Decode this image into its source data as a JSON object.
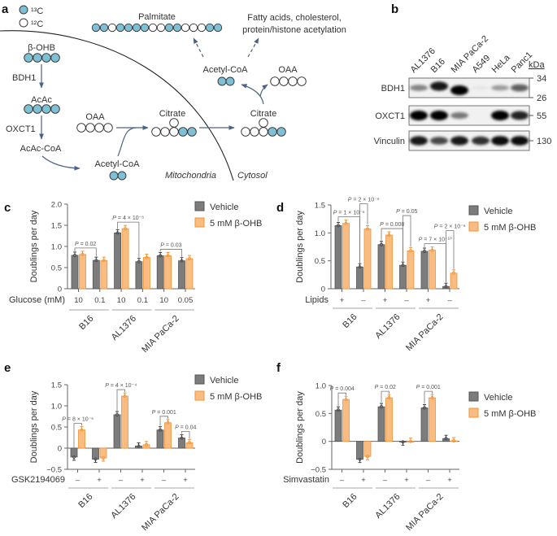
{
  "colors": {
    "carbon13": "#7ec0d6",
    "carbon12": "#ffffff",
    "vehicle": "#7c7c7c",
    "bohb": "#f9bd84",
    "bohb_stroke": "#f29333",
    "arrow": "#4b6385"
  },
  "panel_a": {
    "label": "a",
    "legend": {
      "c13": "¹³C",
      "c12": "¹²C"
    },
    "palmitate": "Palmitate",
    "fates": [
      "Fatty acids, cholesterol,",
      "protein/histone acetylation"
    ],
    "bohb": "β-OHB",
    "bdh1": "BDH1",
    "acac": "AcAc",
    "oxct1": "OXCT1",
    "acac_coa": "AcAc-CoA",
    "oaa_mito": "OAA",
    "citrate_mito": "Citrate",
    "citrate_cyto": "Citrate",
    "acetyl_coa_cyto": "Acetyl-CoA",
    "oaa_cyto": "OAA",
    "acetyl_coa_mito": "Acetyl-CoA",
    "mitochondria": "Mitochondria",
    "cytosol": "Cytosol",
    "labeling": {
      "palmitate": [
        1,
        1,
        0,
        1,
        1,
        1,
        1,
        0,
        0,
        1,
        1,
        0,
        0,
        0,
        1,
        1
      ],
      "bohb": [
        1,
        1,
        1,
        1
      ],
      "acac": [
        1,
        1,
        1,
        1
      ],
      "oaa_mito": [
        0,
        0,
        0,
        0
      ],
      "citrate_row": [
        0,
        0,
        0,
        1,
        1
      ],
      "citrate_top": [
        0
      ],
      "acetyl_coa_cyto": [
        1,
        1
      ],
      "oaa_cyto": [
        0,
        0,
        0,
        0
      ],
      "acetyl_coa_mito": [
        1,
        1
      ]
    }
  },
  "panel_b": {
    "label": "b",
    "lanes": [
      "AL1376",
      "B16",
      "MIA PaCa-2",
      "A549",
      "HeLa",
      "Panc1"
    ],
    "kda_label": "kDa",
    "blots": [
      {
        "name": "BDH1",
        "markers": [
          "34",
          "26"
        ],
        "intensity": [
          0.45,
          0.9,
          1.0,
          0.05,
          0.35,
          0.6
        ]
      },
      {
        "name": "OXCT1",
        "markers": [
          "55"
        ],
        "intensity": [
          1.0,
          1.0,
          0.5,
          0.0,
          1.0,
          0.85
        ]
      },
      {
        "name": "Vinculin",
        "markers": [
          "130"
        ],
        "intensity": [
          0.9,
          0.7,
          0.9,
          0.8,
          0.95,
          0.95
        ]
      }
    ]
  },
  "chart_data": [
    {
      "panel": "c",
      "type": "bar",
      "ylabel": "Doublings per day",
      "ylim": [
        0,
        2
      ],
      "yticks": [
        "0",
        "0.5",
        "1.0",
        "1.5",
        "2.0"
      ],
      "ytick_values": [
        0,
        0.5,
        1.0,
        1.5,
        2.0
      ],
      "condition_label": "Glucose (mM)",
      "groups": [
        "B16",
        "AL1376",
        "MIA PaCa-2"
      ],
      "conditions": [
        "10",
        "0.1",
        "10",
        "0.1",
        "10",
        "0.05"
      ],
      "legend": [
        "Vehicle",
        "5 mM β-OHB"
      ],
      "series": [
        {
          "name": "Vehicle",
          "values": [
            0.79,
            0.67,
            1.32,
            0.64,
            0.78,
            0.66
          ]
        },
        {
          "name": "5 mM β-OHB",
          "values": [
            0.81,
            0.67,
            1.42,
            0.74,
            0.78,
            0.71
          ]
        }
      ],
      "annotations": [
        {
          "text": "P = 0.02",
          "from": [
            0,
            0
          ],
          "to": [
            1,
            0
          ]
        },
        {
          "text": "P = 4 × 10⁻⁶",
          "from": [
            2,
            0
          ],
          "to": [
            3,
            0
          ]
        },
        {
          "text": "P = 0.03",
          "from": [
            4,
            0
          ],
          "to": [
            5,
            0
          ]
        }
      ]
    },
    {
      "panel": "d",
      "type": "bar",
      "ylabel": "Doublings per day",
      "ylim": [
        0,
        1.5
      ],
      "yticks": [
        "0",
        "0.5",
        "1.0",
        "1.5"
      ],
      "ytick_values": [
        0,
        0.5,
        1.0,
        1.5
      ],
      "condition_label": "Lipids",
      "groups": [
        "B16",
        "AL1376",
        "MIA PaCa-2"
      ],
      "conditions": [
        "+",
        "–",
        "+",
        "–",
        "+",
        "–"
      ],
      "legend": [
        "Vehicle",
        "5 mM β-OHB"
      ],
      "series": [
        {
          "name": "Vehicle",
          "values": [
            1.13,
            0.39,
            0.79,
            0.42,
            0.67,
            0.04
          ]
        },
        {
          "name": "5 mM β-OHB",
          "values": [
            1.17,
            1.07,
            0.96,
            0.68,
            0.69,
            0.28
          ]
        }
      ],
      "annotations": [
        {
          "text": "P = 1 × 10⁻⁶",
          "from": [
            0,
            0
          ],
          "to": [
            1,
            0
          ]
        },
        {
          "text": "P = 2 × 10⁻⁶",
          "from": [
            1,
            0
          ],
          "to": [
            1,
            1
          ]
        },
        {
          "text": "P = 0.008",
          "from": [
            2,
            0
          ],
          "to": [
            3,
            0
          ]
        },
        {
          "text": "P = 0.05",
          "from": [
            3,
            0
          ],
          "to": [
            3,
            1
          ]
        },
        {
          "text": "P = 7 × 10⁻¹⁰",
          "from": [
            4,
            0
          ],
          "to": [
            5,
            0
          ]
        },
        {
          "text": "P = 2 × 10⁻⁶",
          "from": [
            5,
            0
          ],
          "to": [
            5,
            1
          ]
        }
      ]
    },
    {
      "panel": "e",
      "type": "bar",
      "ylabel": "Doublings per day",
      "ylim": [
        -0.5,
        1.5
      ],
      "yticks": [
        "−0.5",
        "0",
        "0.5",
        "1.0",
        "1.5"
      ],
      "ytick_values": [
        -0.5,
        0,
        0.5,
        1.0,
        1.5
      ],
      "condition_label": "GSK2194069",
      "groups": [
        "B16",
        "AL1376",
        "MIA PaCa-2"
      ],
      "conditions": [
        "–",
        "+",
        "–",
        "+",
        "–",
        "+"
      ],
      "legend": [
        "Vehicle",
        "5 mM β-OHB"
      ],
      "series": [
        {
          "name": "Vehicle",
          "values": [
            -0.21,
            -0.26,
            0.79,
            0.05,
            0.43,
            0.24
          ]
        },
        {
          "name": "5 mM β-OHB",
          "values": [
            0.43,
            -0.23,
            1.23,
            0.08,
            0.6,
            0.13
          ]
        }
      ],
      "annotations": [
        {
          "text": "P = 8 × 10⁻⁶",
          "from": [
            0,
            0
          ],
          "to": [
            0,
            1
          ]
        },
        {
          "text": "P = 4 × 10⁻⁴",
          "from": [
            2,
            0
          ],
          "to": [
            2,
            1
          ]
        },
        {
          "text": "P = 0.001",
          "from": [
            4,
            0
          ],
          "to": [
            4,
            1
          ]
        },
        {
          "text": "P = 0.04",
          "from": [
            5,
            0
          ],
          "to": [
            5,
            1
          ]
        }
      ]
    },
    {
      "panel": "f",
      "type": "bar",
      "ylabel": "Doublings per day",
      "ylim": [
        -0.5,
        1.0
      ],
      "yticks": [
        "−0.5",
        "0",
        "0.5",
        "1.0"
      ],
      "ytick_values": [
        -0.5,
        0,
        0.5,
        1.0
      ],
      "condition_label": "Simvastatin",
      "groups": [
        "B16",
        "AL1376",
        "MIA PaCa-2"
      ],
      "conditions": [
        "–",
        "+",
        "–",
        "+",
        "–",
        "+"
      ],
      "legend": [
        "Vehicle",
        "5 mM β-OHB"
      ],
      "series": [
        {
          "name": "Vehicle",
          "values": [
            0.56,
            -0.32,
            0.62,
            -0.01,
            0.6,
            0.05
          ]
        },
        {
          "name": "5 mM β-OHB",
          "values": [
            0.75,
            -0.27,
            0.78,
            0.0,
            0.78,
            0.01
          ]
        }
      ],
      "annotations": [
        {
          "text": "P = 0.004",
          "from": [
            0,
            0
          ],
          "to": [
            0,
            1
          ]
        },
        {
          "text": "P = 0.02",
          "from": [
            2,
            0
          ],
          "to": [
            2,
            1
          ]
        },
        {
          "text": "P = 0.001",
          "from": [
            4,
            0
          ],
          "to": [
            4,
            1
          ]
        }
      ]
    }
  ]
}
